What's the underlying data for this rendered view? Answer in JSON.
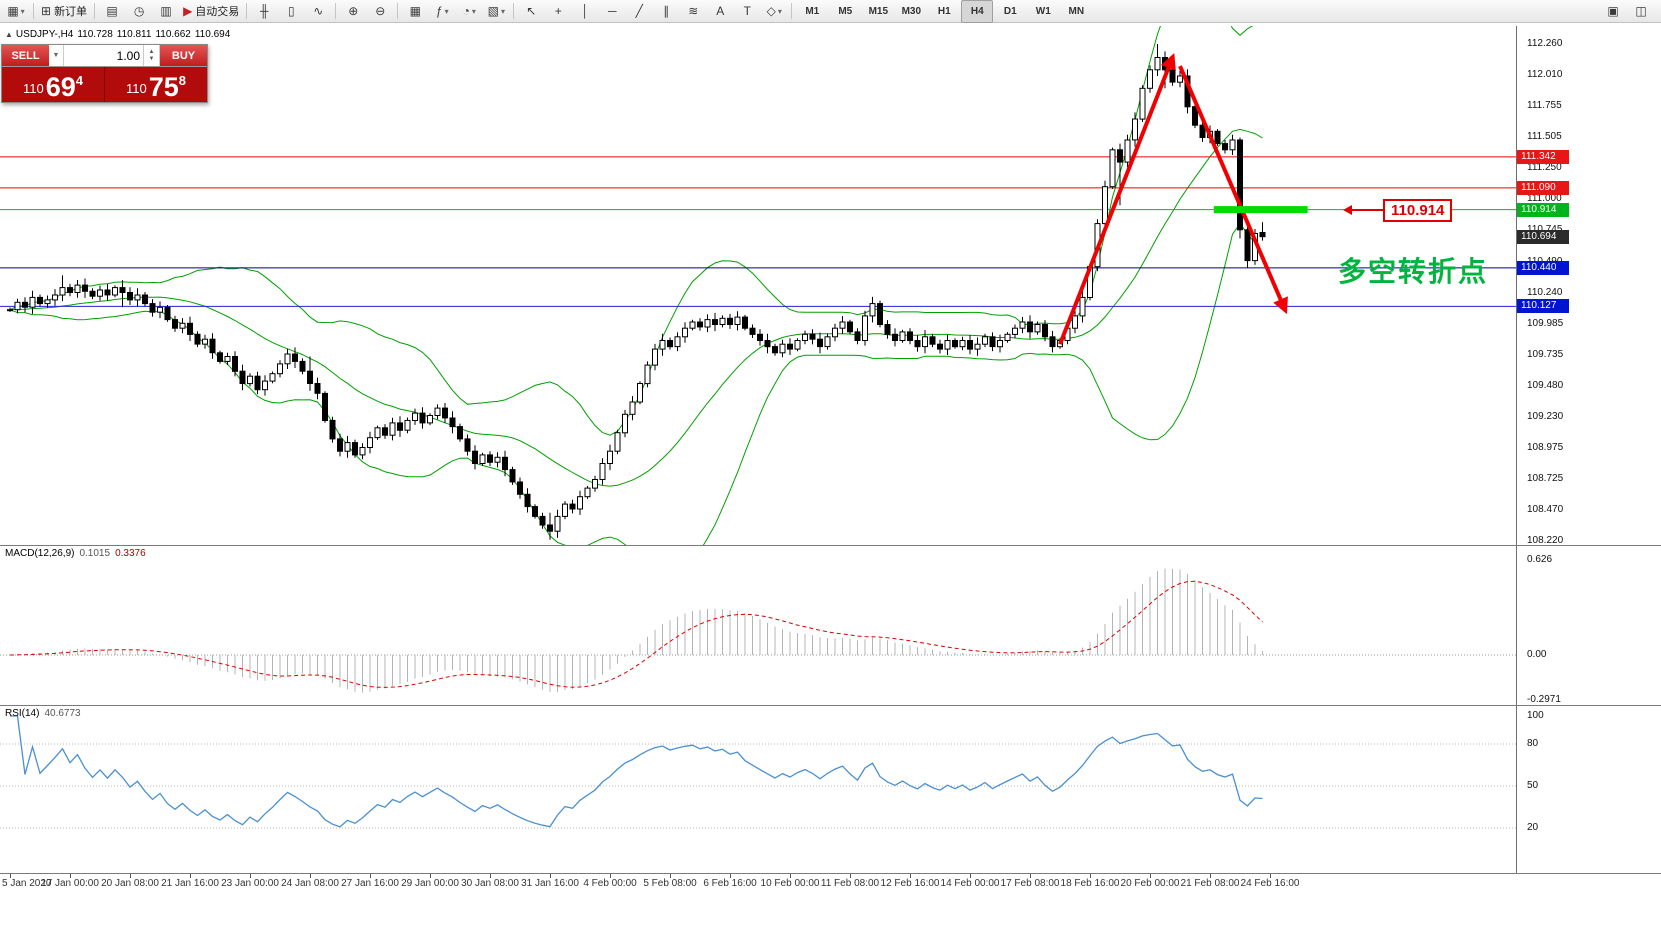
{
  "toolbar": {
    "left_groups": [
      {
        "items": [
          {
            "name": "new-chart-button",
            "glyph": "▦",
            "dropdown": true
          }
        ]
      },
      {
        "items": [
          {
            "name": "new-order-button",
            "glyph": "⊞",
            "label": "新订单"
          }
        ]
      },
      {
        "items": [
          {
            "name": "profiles-button",
            "glyph": "▤"
          },
          {
            "name": "market-watch-button",
            "glyph": "◷"
          },
          {
            "name": "data-window-button",
            "glyph": "▥"
          },
          {
            "name": "auto-trading-button",
            "glyph": "▶",
            "glyph_color": "#c22222",
            "label": "自动交易"
          }
        ]
      },
      {
        "items": [
          {
            "name": "bar-chart-button",
            "glyph": "╫"
          },
          {
            "name": "candlestick-chart-button",
            "glyph": "▯"
          },
          {
            "name": "line-chart-button",
            "glyph": "∿"
          }
        ]
      },
      {
        "items": [
          {
            "name": "zoom-in-button",
            "glyph": "⊕"
          },
          {
            "name": "zoom-out-button",
            "glyph": "⊖"
          }
        ]
      },
      {
        "items": [
          {
            "name": "tile-windows-button",
            "glyph": "▦"
          },
          {
            "name": "indicators-button",
            "glyph": "ƒ",
            "dropdown": true
          },
          {
            "name": "periods-button",
            "glyph": "◔",
            "dropdown": true
          },
          {
            "name": "templates-button",
            "glyph": "▧",
            "dropdown": true
          }
        ]
      },
      {
        "items": [
          {
            "name": "cursor-button",
            "glyph": "↖"
          },
          {
            "name": "crosshair-button",
            "glyph": "+"
          },
          {
            "name": "vertical-line-button",
            "glyph": "│"
          },
          {
            "name": "horizontal-line-button",
            "glyph": "─"
          },
          {
            "name": "trendline-button",
            "glyph": "╱"
          },
          {
            "name": "channel-button",
            "glyph": "∥"
          },
          {
            "name": "fibonacci-button",
            "glyph": "≋"
          },
          {
            "name": "text-button",
            "glyph": "A"
          },
          {
            "name": "label-button",
            "glyph": "T"
          },
          {
            "name": "shapes-button",
            "glyph": "◇",
            "dropdown": true
          }
        ]
      }
    ],
    "timeframes": {
      "items": [
        "M1",
        "M5",
        "M15",
        "M30",
        "H1",
        "H4",
        "D1",
        "W1",
        "MN"
      ],
      "active": "H4"
    },
    "right_items": [
      {
        "name": "chart-shift-button",
        "glyph": "▣"
      },
      {
        "name": "auto-scroll-button",
        "glyph": "◫"
      }
    ]
  },
  "symbol_info": {
    "arrow": "▲",
    "symbol": "USDJPY-,H4",
    "open": "110.728",
    "high": "110.811",
    "low": "110.662",
    "close": "110.694"
  },
  "trade_panel": {
    "sell_label": "SELL",
    "buy_label": "BUY",
    "volume": "1.00",
    "sell_price": {
      "prefix": "110",
      "big": "69",
      "sup": "4"
    },
    "buy_price": {
      "prefix": "110",
      "big": "75",
      "sup": "8"
    }
  },
  "indicators": {
    "macd": {
      "name": "MACD(12,26,9)",
      "value_main": "0.1015",
      "value_signal": "0.3376"
    },
    "rsi": {
      "name": "RSI(14)",
      "value": "40.6773"
    }
  },
  "annotations": {
    "price_label": "110.914",
    "turning_text": "多空转折点",
    "arrow_color": "#f00000",
    "arrows": [
      {
        "from": {
          "bar": 140,
          "price": 109.82
        },
        "to": {
          "bar": 155,
          "price": 112.15
        }
      },
      {
        "from": {
          "bar": 156,
          "price": 112.08
        },
        "to": {
          "bar": 170,
          "price": 110.1
        }
      }
    ],
    "highlight": {
      "bar_from": 160.5,
      "bar_to": 173,
      "price": 110.914,
      "color": "#00dc00",
      "thickness": 7
    }
  },
  "chart_data": {
    "type": "candlestick",
    "symbol": "USDJPY-",
    "timeframe": "H4",
    "ohlc_current": {
      "open": 110.728,
      "high": 110.811,
      "low": 110.662,
      "close": 110.694
    },
    "closes": [
      110.1,
      110.16,
      110.12,
      110.2,
      110.15,
      110.18,
      110.22,
      110.28,
      110.24,
      110.3,
      110.25,
      110.21,
      110.26,
      110.22,
      110.28,
      110.24,
      110.18,
      110.22,
      110.15,
      110.08,
      110.12,
      110.02,
      109.95,
      109.99,
      109.9,
      109.82,
      109.86,
      109.75,
      109.68,
      109.72,
      109.6,
      109.5,
      109.56,
      109.45,
      109.52,
      109.58,
      109.66,
      109.74,
      109.68,
      109.6,
      109.5,
      109.42,
      109.2,
      109.05,
      108.95,
      109.02,
      108.92,
      108.98,
      109.06,
      109.14,
      109.08,
      109.18,
      109.12,
      109.2,
      109.26,
      109.18,
      109.24,
      109.3,
      109.22,
      109.15,
      109.05,
      108.95,
      108.85,
      108.92,
      108.86,
      108.9,
      108.8,
      108.7,
      108.6,
      108.5,
      108.42,
      108.35,
      108.3,
      108.42,
      108.52,
      108.48,
      108.58,
      108.65,
      108.72,
      108.85,
      108.95,
      109.1,
      109.25,
      109.35,
      109.5,
      109.65,
      109.78,
      109.85,
      109.8,
      109.88,
      109.95,
      110.0,
      109.96,
      110.02,
      109.98,
      110.03,
      109.98,
      110.04,
      109.95,
      109.9,
      109.85,
      109.8,
      109.75,
      109.82,
      109.78,
      109.85,
      109.9,
      109.86,
      109.8,
      109.88,
      109.95,
      110.0,
      109.92,
      109.85,
      110.05,
      110.15,
      109.98,
      109.9,
      109.85,
      109.92,
      109.85,
      109.8,
      109.88,
      109.82,
      109.78,
      109.85,
      109.8,
      109.85,
      109.78,
      109.82,
      109.88,
      109.8,
      109.85,
      109.9,
      109.95,
      110.0,
      109.92,
      109.98,
      109.88,
      109.8,
      109.85,
      109.95,
      110.05,
      110.2,
      110.45,
      110.8,
      111.1,
      111.4,
      111.3,
      111.48,
      111.65,
      111.9,
      112.05,
      112.15,
      112.05,
      111.95,
      112.0,
      111.75,
      111.6,
      111.5,
      111.55,
      111.45,
      111.4,
      111.48,
      110.75,
      110.5,
      110.72,
      110.694
    ],
    "wick_overrides": {
      "7": [
        110.38,
        110.17
      ],
      "15": [
        110.34,
        110.12
      ],
      "40": [
        109.72,
        109.44
      ],
      "72": [
        108.45,
        108.23
      ],
      "148": [
        111.45,
        110.95
      ],
      "153": [
        112.26,
        112.0
      ],
      "154": [
        112.2,
        111.9
      ],
      "164": [
        111.5,
        110.68
      ],
      "165": [
        110.8,
        110.44
      ]
    },
    "indicators": {
      "bollinger": {
        "period": 20,
        "deviation": 2
      },
      "macd": {
        "fast": 12,
        "slow": 26,
        "signal": 9
      },
      "rsi": {
        "period": 14
      }
    },
    "levels": [
      {
        "price": 111.342,
        "color": "#f00000",
        "label": "111.342",
        "tag_bg": "#e81717"
      },
      {
        "price": 111.09,
        "color": "#f00000",
        "label": "111.090",
        "tag_bg": "#e81717"
      },
      {
        "price": 110.914,
        "color": "#00c000",
        "label": "110.914",
        "tag_bg": "#00b41e"
      },
      {
        "price": 110.44,
        "color": "#00008b",
        "label": "110.440",
        "tag_bg": "#0014d2"
      },
      {
        "price": 110.127,
        "color": "#2121e0",
        "label": "110.127",
        "tag_bg": "#0014d2"
      }
    ],
    "current_tag": {
      "price": 110.694,
      "label": "110.694",
      "tag_bg": "#2b2b2b"
    },
    "y_axis": {
      "max": 112.26,
      "min": 108.22,
      "ticks": [
        "112.260",
        "112.010",
        "111.755",
        "111.505",
        "111.250",
        "111.000",
        "110.745",
        "110.490",
        "110.240",
        "109.985",
        "109.735",
        "109.480",
        "109.230",
        "108.975",
        "108.725",
        "108.470",
        "108.220"
      ]
    },
    "macd_axis": {
      "ticks": [
        {
          "label": "0.626",
          "value": 0.626
        },
        {
          "label": "0.00",
          "value": 0
        },
        {
          "label": "-0.2971",
          "value": -0.2971
        }
      ]
    },
    "rsi_axis": {
      "ticks": [
        {
          "label": "100",
          "value": 100
        },
        {
          "label": "80",
          "value": 80
        },
        {
          "label": "50",
          "value": 50
        },
        {
          "label": "20",
          "value": 20
        }
      ],
      "levels": [
        80,
        50,
        20
      ]
    },
    "x_axis": {
      "labels": [
        "5 Jan 2020",
        "17 Jan 00:00",
        "20 Jan 08:00",
        "21 Jan 16:00",
        "23 Jan 00:00",
        "24 Jan 08:00",
        "27 Jan 16:00",
        "29 Jan 00:00",
        "30 Jan 08:00",
        "31 Jan 16:00",
        "4 Feb 00:00",
        "5 Feb 08:00",
        "6 Feb 16:00",
        "10 Feb 00:00",
        "11 Feb 08:00",
        "12 Feb 16:00",
        "14 Feb 00:00",
        "17 Feb 08:00",
        "18 Feb 16:00",
        "20 Feb 00:00",
        "21 Feb 08:00",
        "24 Feb 16:00"
      ]
    },
    "colors": {
      "candle": "#000000",
      "bull_fill": "#ffffff",
      "bear_fill": "#000000",
      "bollinger": "#00a000",
      "macd_hist": "#b4b4b4",
      "macd_signal": "#e00000",
      "rsi_line": "#4a90d2",
      "level_dotted": "#b8b8b8"
    }
  }
}
